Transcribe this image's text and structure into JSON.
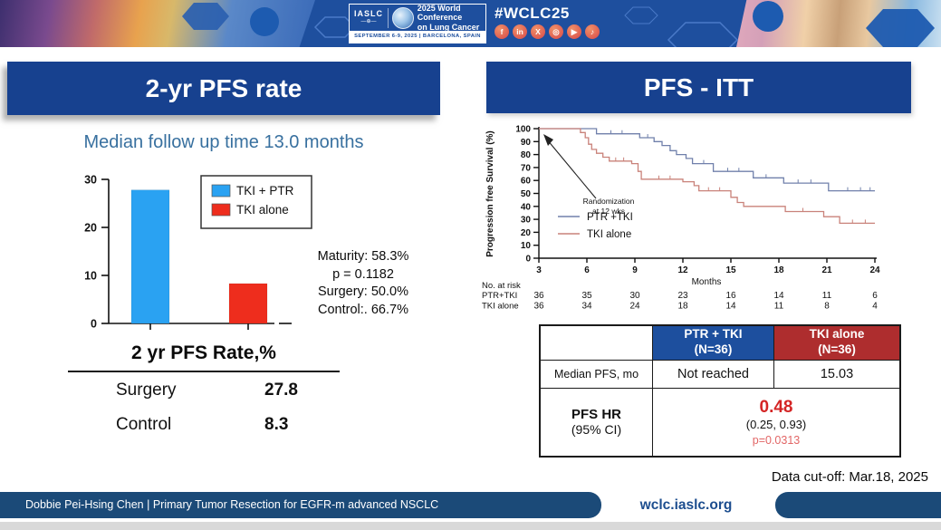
{
  "colors": {
    "panel_title_bg": "#17418f",
    "banner_blue": "#1e4f9e",
    "bar_blue": "#2aa2f2",
    "bar_red": "#ee2d1d",
    "km_blue": "#7080ab",
    "km_red": "#c9827a",
    "table_header_blue": "#1d4f9e",
    "table_header_red": "#ae2d2e",
    "hr_red": "#d42525",
    "p_red": "#e26666",
    "footer_navy": "#1b4a78"
  },
  "banner": {
    "iaslc_label": "IASLC",
    "conference_line1": "2025 World Conference",
    "conference_line2": "on Lung Cancer",
    "dates": "SEPTEMBER 6-9, 2025   |   BARCELONA, SPAIN",
    "hashtag": "#WCLC25",
    "social": [
      {
        "name": "facebook-icon",
        "glyph": "f"
      },
      {
        "name": "linkedin-icon",
        "glyph": "in"
      },
      {
        "name": "x-icon",
        "glyph": "X"
      },
      {
        "name": "instagram-icon",
        "glyph": "◎"
      },
      {
        "name": "youtube-icon",
        "glyph": "▶"
      },
      {
        "name": "tiktok-icon",
        "glyph": "♪"
      }
    ]
  },
  "left_panel": {
    "title": "2-yr PFS rate",
    "subtitle": "Median follow up time 13.0 months",
    "stats": [
      "Maturity: 58.3%",
      "p = 0.1182",
      "Surgery: 50.0%",
      "Control:. 66.7%"
    ],
    "summary": {
      "title": "2 yr PFS Rate,%",
      "rows": [
        {
          "label": "Surgery",
          "value": "27.8"
        },
        {
          "label": "Control",
          "value": "8.3"
        }
      ]
    }
  },
  "right_panel": {
    "title": "PFS - ITT",
    "results_table": {
      "header_col1_line1": "PTR + TKI",
      "header_col1_line2": "(N=36)",
      "header_col2_line1": "TKI alone",
      "header_col2_line2": "(N=36)",
      "row1_label": "Median PFS, mo",
      "row1_blue": "Not reached",
      "row1_red": "15.03",
      "row2_label_line1": "PFS HR",
      "row2_label_line2": "(95% CI)",
      "hr_value": "0.48",
      "hr_ci": "(0.25, 0.93)",
      "hr_p": "p=0.0313"
    },
    "data_cutoff": "Data cut-off: Mar.18, 2025"
  },
  "footer": {
    "credit": "Dobbie Pei-Hsing Chen | Primary Tumor Resection for EGFR-m advanced NSCLC",
    "site": "wclc.iaslc.org"
  },
  "chart_data": [
    {
      "type": "bar",
      "title": "2-yr PFS rate",
      "categories": [
        "TKI + PTR",
        "TKI alone"
      ],
      "values": [
        27.8,
        8.3
      ],
      "colors": [
        "#2aa2f2",
        "#ee2d1d"
      ],
      "xlabel": "",
      "ylabel": "",
      "ylim": [
        0,
        30
      ],
      "yticks": [
        0,
        10,
        20,
        30
      ],
      "legend": [
        {
          "label": "TKI + PTR",
          "color": "#2aa2f2"
        },
        {
          "label": "TKI alone",
          "color": "#ee2d1d"
        }
      ],
      "legend_position": "upper right",
      "grid": false
    },
    {
      "type": "line",
      "subtype": "kaplan-meier",
      "title": "PFS - ITT",
      "xlabel": "Months",
      "ylabel": "Progression free Survival (%)",
      "xlim": [
        3,
        24
      ],
      "xticks": [
        3,
        6,
        9,
        12,
        15,
        18,
        21,
        24
      ],
      "ylim": [
        0,
        100
      ],
      "yticks": [
        0,
        10,
        20,
        30,
        40,
        50,
        60,
        70,
        80,
        90,
        100
      ],
      "annotation": [
        "Randomization",
        "at 12 wks"
      ],
      "legend_position": "lower left inside",
      "grid": false,
      "series": [
        {
          "name": "PTR +TKI",
          "color": "#7080ab",
          "steps": [
            [
              3,
              100
            ],
            [
              6.6,
              100
            ],
            [
              6.6,
              96
            ],
            [
              9.3,
              96
            ],
            [
              9.3,
              93
            ],
            [
              10.2,
              93
            ],
            [
              10.2,
              90
            ],
            [
              10.7,
              90
            ],
            [
              10.7,
              87
            ],
            [
              11.2,
              87
            ],
            [
              11.2,
              83
            ],
            [
              11.6,
              83
            ],
            [
              11.6,
              80
            ],
            [
              12.2,
              80
            ],
            [
              12.2,
              77
            ],
            [
              12.6,
              77
            ],
            [
              12.6,
              73
            ],
            [
              13.9,
              73
            ],
            [
              13.9,
              67
            ],
            [
              16.4,
              67
            ],
            [
              16.4,
              62
            ],
            [
              18.3,
              62
            ],
            [
              18.3,
              58
            ],
            [
              21.1,
              58
            ],
            [
              21.1,
              52
            ],
            [
              24,
              52
            ]
          ],
          "censors": [
            [
              7.5,
              96
            ],
            [
              8.2,
              96
            ],
            [
              9.8,
              93
            ],
            [
              13.3,
              73
            ],
            [
              14.8,
              67
            ],
            [
              15.5,
              67
            ],
            [
              17.2,
              62
            ],
            [
              19.2,
              58
            ],
            [
              20.0,
              58
            ],
            [
              22.3,
              52
            ],
            [
              23.1,
              52
            ],
            [
              23.7,
              52
            ]
          ]
        },
        {
          "name": "TKI alone",
          "color": "#c9827a",
          "steps": [
            [
              3,
              100
            ],
            [
              5.6,
              100
            ],
            [
              5.6,
              97
            ],
            [
              5.9,
              97
            ],
            [
              5.9,
              93
            ],
            [
              6.1,
              93
            ],
            [
              6.1,
              88
            ],
            [
              6.3,
              88
            ],
            [
              6.3,
              84
            ],
            [
              6.6,
              84
            ],
            [
              6.6,
              81
            ],
            [
              7.0,
              81
            ],
            [
              7.0,
              78
            ],
            [
              7.4,
              78
            ],
            [
              7.4,
              75
            ],
            [
              8.8,
              75
            ],
            [
              8.8,
              73
            ],
            [
              9.2,
              73
            ],
            [
              9.2,
              67
            ],
            [
              9.4,
              67
            ],
            [
              9.4,
              61
            ],
            [
              12.0,
              61
            ],
            [
              12.0,
              59
            ],
            [
              12.7,
              59
            ],
            [
              12.7,
              56
            ],
            [
              13.0,
              56
            ],
            [
              13.0,
              52
            ],
            [
              15.0,
              52
            ],
            [
              15.0,
              47
            ],
            [
              15.4,
              47
            ],
            [
              15.4,
              43
            ],
            [
              15.8,
              43
            ],
            [
              15.8,
              40
            ],
            [
              18.4,
              40
            ],
            [
              18.4,
              36
            ],
            [
              20.8,
              36
            ],
            [
              20.8,
              32
            ],
            [
              21.8,
              32
            ],
            [
              21.8,
              27
            ],
            [
              24,
              27
            ]
          ],
          "censors": [
            [
              7.8,
              75
            ],
            [
              8.3,
              75
            ],
            [
              10.5,
              61
            ],
            [
              11.2,
              61
            ],
            [
              13.6,
              52
            ],
            [
              14.3,
              52
            ],
            [
              19.5,
              36
            ],
            [
              22.6,
              27
            ],
            [
              23.4,
              27
            ]
          ]
        }
      ],
      "risk_table": {
        "label": "No. at  risk",
        "rows": [
          {
            "name": "PTR+TKI",
            "values": [
              36,
              35,
              30,
              23,
              16,
              14,
              11,
              6
            ]
          },
          {
            "name": "TKI alone",
            "values": [
              36,
              34,
              24,
              18,
              14,
              11,
              8,
              4
            ]
          }
        ]
      }
    }
  ]
}
